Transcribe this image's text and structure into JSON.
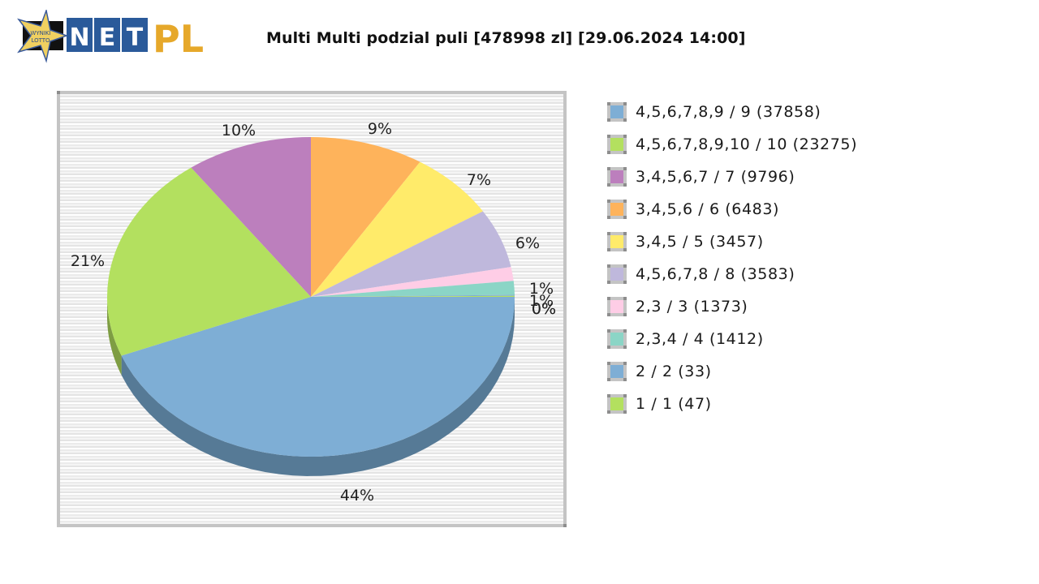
{
  "header": {
    "logo": {
      "star_text_line1": "WYNIKI",
      "star_text_line2": "LOTTO",
      "letters": [
        "N",
        "E",
        "T"
      ],
      "suffix": "PL",
      "colors": {
        "star": "#f0d060",
        "tile": "#2a5a9a",
        "suffix": "#e6a82a"
      }
    },
    "title": "Multi Multi podzial puli [478998 zl] [29.06.2024 14:00]"
  },
  "chart_data": {
    "type": "pie",
    "title": "Multi Multi podzial puli [478998 zl] [29.06.2024 14:00]",
    "style": "3d",
    "start_angle_deg": 0,
    "direction": "clockwise",
    "legend_position": "right",
    "slices": [
      {
        "label": "4,5,6,7,8,9 / 9 (37858)",
        "value": 37858,
        "percent_label": "44%",
        "percent": 44,
        "color": "#7eaed5",
        "shade": "#567a96"
      },
      {
        "label": "4,5,6,7,8,9,10 / 10 (23275)",
        "value": 23275,
        "percent_label": "21%",
        "percent": 21,
        "color": "#b3e05f",
        "shade": "#7e9d43"
      },
      {
        "label": "3,4,5,6,7 / 7 (9796)",
        "value": 9796,
        "percent_label": "10%",
        "percent": 10,
        "color": "#bc7fbd",
        "shade": "#845985"
      },
      {
        "label": "3,4,5,6 / 6 (6483)",
        "value": 6483,
        "percent_label": "9%",
        "percent": 9,
        "color": "#feb35b",
        "shade": "#b27d40"
      },
      {
        "label": "3,4,5 / 5 (3457)",
        "value": 3457,
        "percent_label": "7%",
        "percent": 7,
        "color": "#ffeb6a",
        "shade": "#b3a54a"
      },
      {
        "label": "4,5,6,7,8 / 8 (3583)",
        "value": 3583,
        "percent_label": "6%",
        "percent": 6,
        "color": "#bfb8dc",
        "shade": "#86819a"
      },
      {
        "label": "2,3 / 3 (1373)",
        "value": 1373,
        "percent_label": "1%",
        "percent": 1.4,
        "color": "#fecde6",
        "shade": "#b290a1"
      },
      {
        "label": "2,3,4 / 4 (1412)",
        "value": 1412,
        "percent_label": "1%",
        "percent": 1.4,
        "color": "#8bd5c6",
        "shade": "#62958b"
      },
      {
        "label": "2 / 2 (33)",
        "value": 33,
        "percent_label": "0%",
        "percent": 0.1,
        "color": "#7eaed5",
        "shade": "#567a96"
      },
      {
        "label": "1 / 1 (47)",
        "value": 47,
        "percent_label": "0%",
        "percent": 0.1,
        "color": "#b3e05f",
        "shade": "#7e9d43"
      }
    ]
  }
}
